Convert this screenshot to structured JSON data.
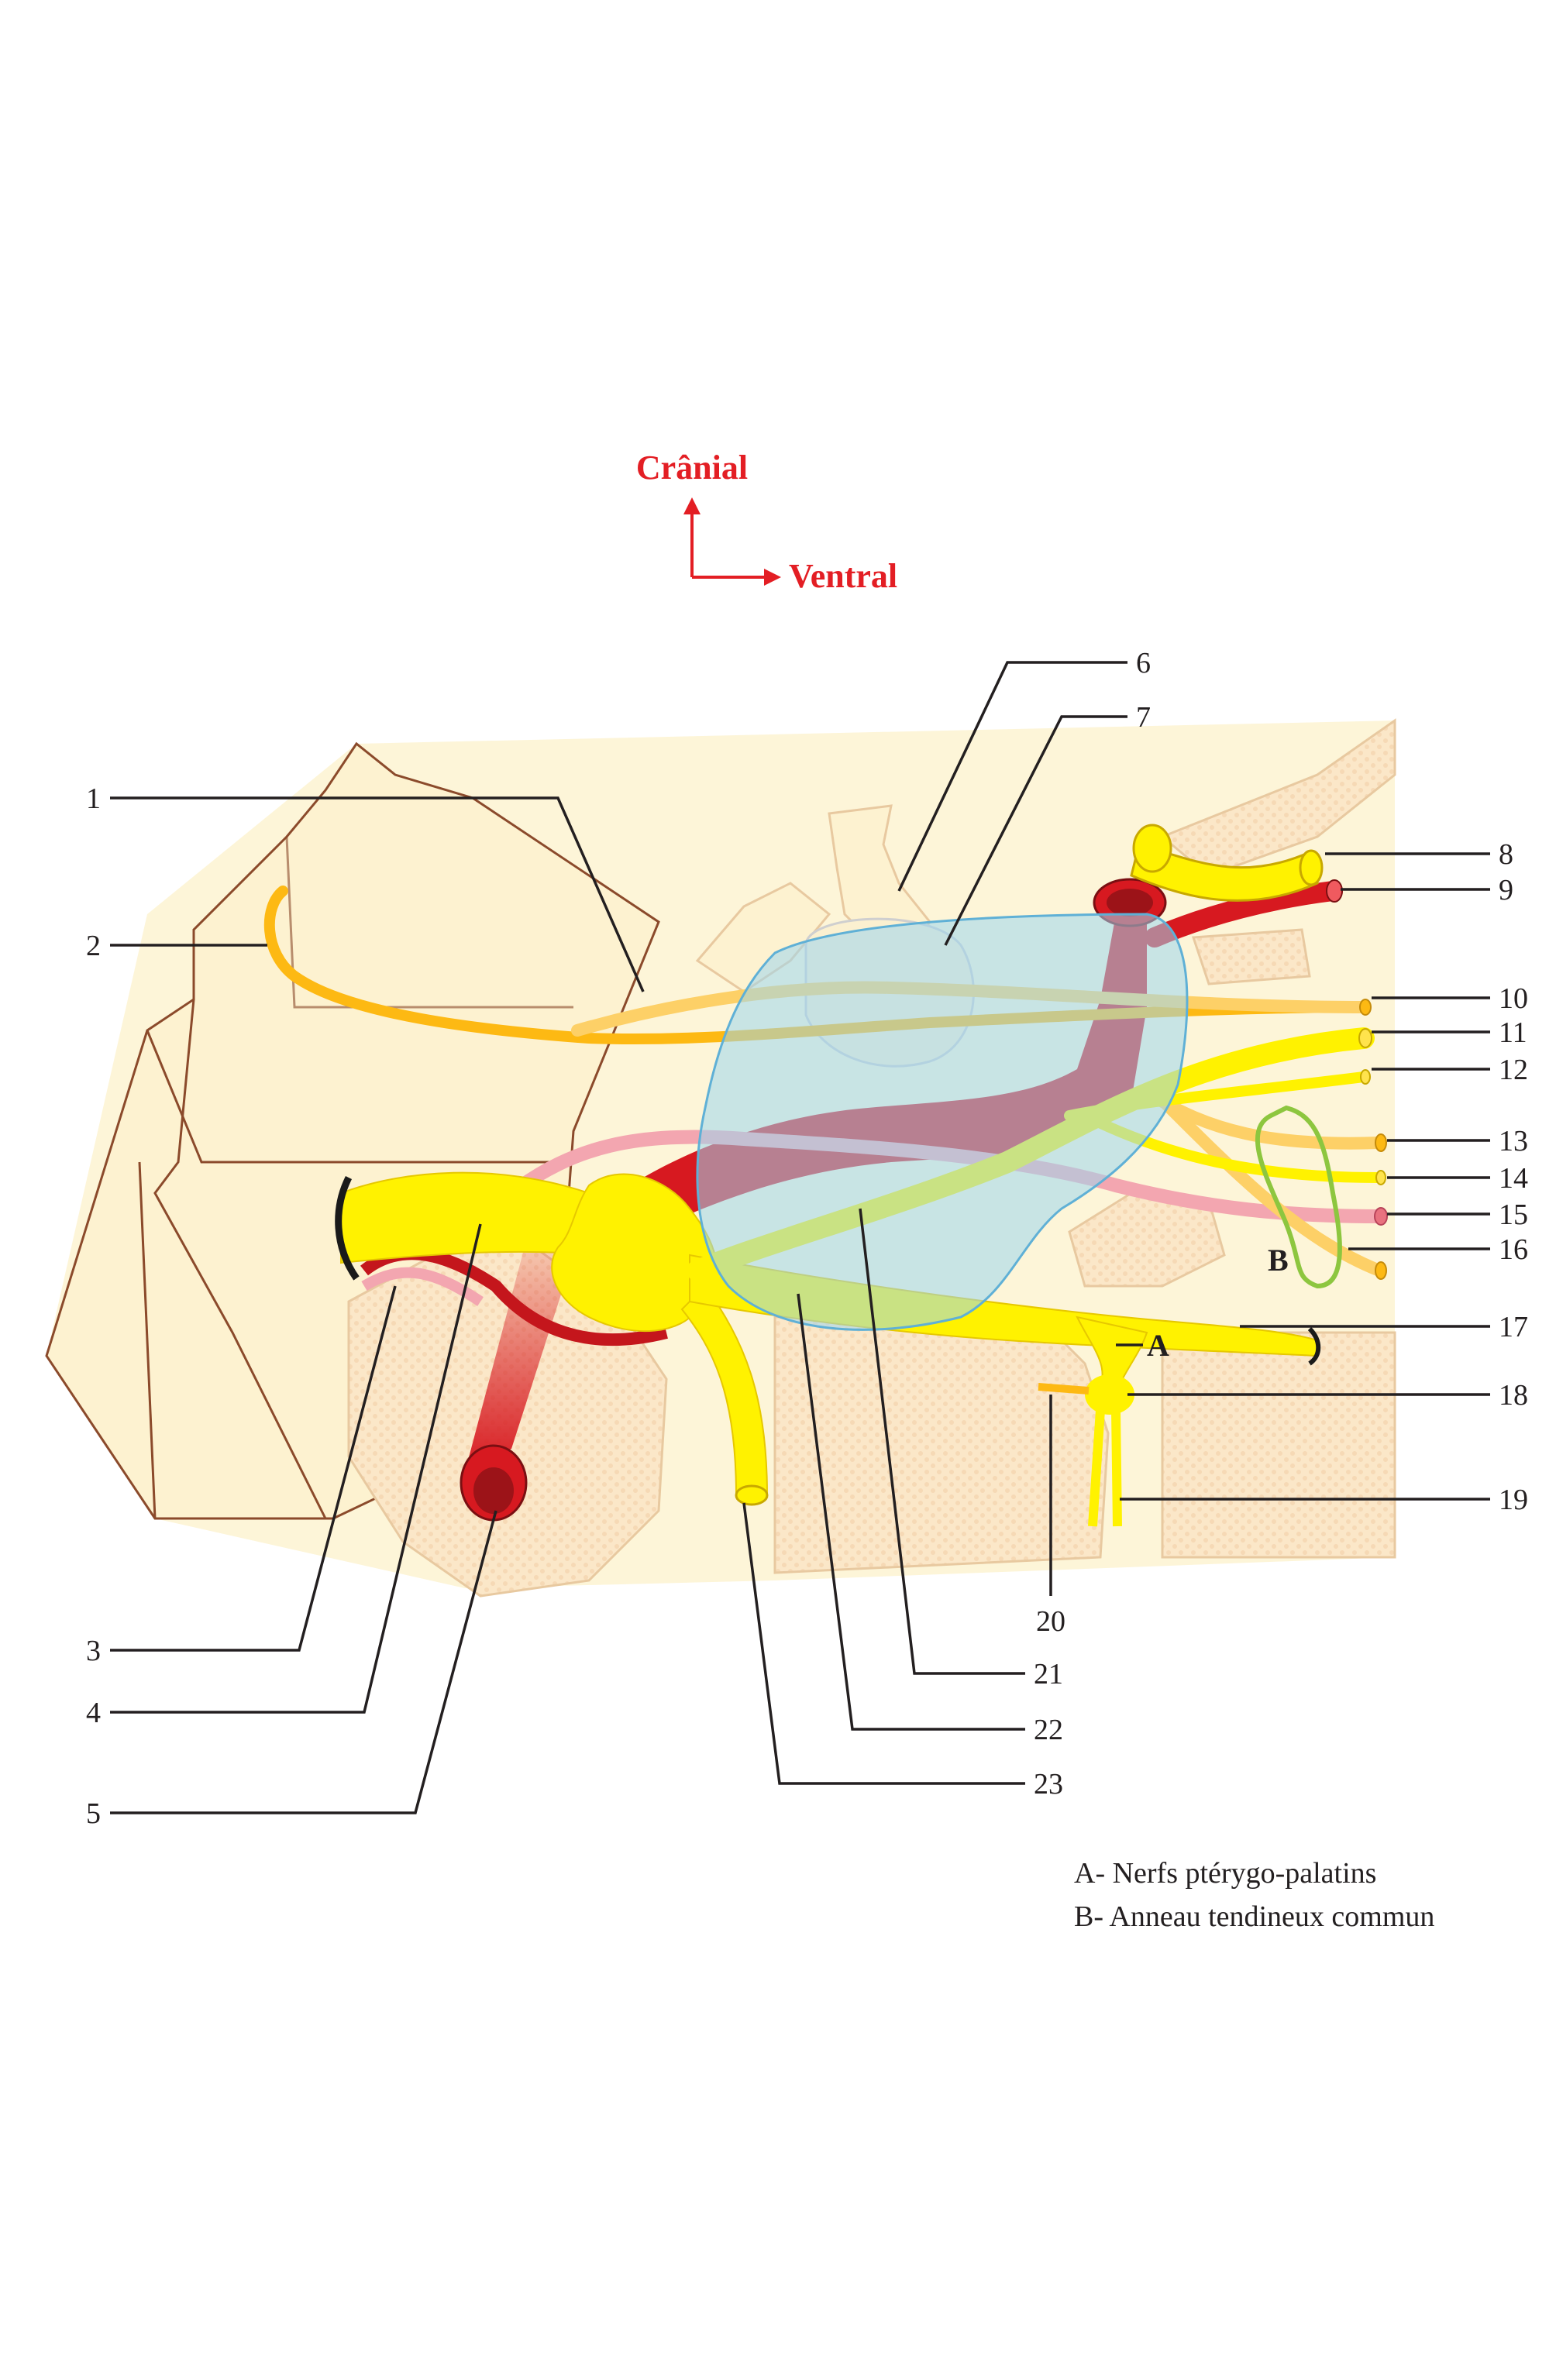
{
  "orientation": {
    "cranial": "Crânial",
    "ventral": "Ventral",
    "color": "#e31e24"
  },
  "labels": [
    "1",
    "2",
    "3",
    "4",
    "5",
    "6",
    "7",
    "8",
    "9",
    "10",
    "11",
    "12",
    "13",
    "14",
    "15",
    "16",
    "17",
    "18",
    "19",
    "20",
    "21",
    "22",
    "23"
  ],
  "markers": {
    "a": "A",
    "b": "B"
  },
  "legend": {
    "a": "A- Nerfs ptérygo-palatins",
    "b": "B- Anneau tendineux commun"
  },
  "colors": {
    "nerve_yellow": "#fff200",
    "nerve_orange": "#fdb913",
    "artery_red": "#d71920",
    "vein_pink": "#f3a6b0",
    "bone_cream": "#fdf5d8",
    "cavernous_blue": "#9dd6ef",
    "ring_green": "#8dc63f"
  }
}
